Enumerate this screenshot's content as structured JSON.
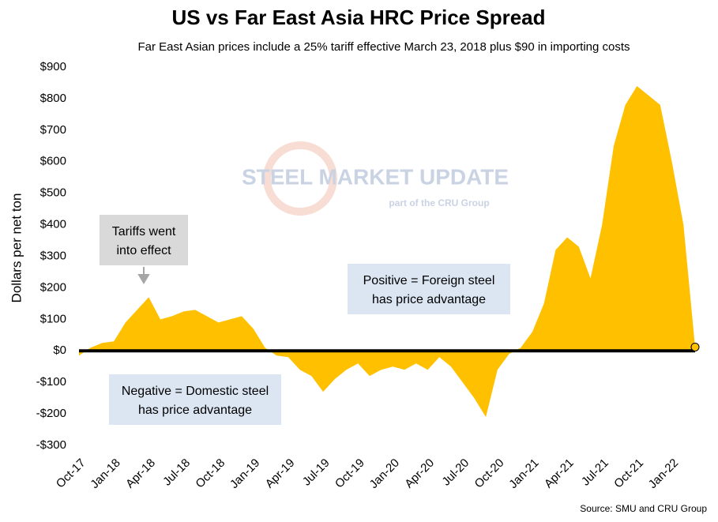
{
  "chart_data": {
    "type": "area",
    "title": "US vs Far East Asia HRC Price Spread",
    "subtitle": "Far East Asian prices include a 25% tariff effective March 23, 2018 plus $90 in importing costs",
    "y_label": "Dollars per net ton",
    "source": "Source: SMU and CRU Group",
    "watermark": {
      "title": "STEEL MARKET UPDATE",
      "subtitle": "part of the CRU Group"
    },
    "color": "#ffc000",
    "categories": [
      "Oct-17",
      null,
      null,
      "Jan-18",
      null,
      null,
      "Apr-18",
      null,
      null,
      "Jul-18",
      null,
      null,
      "Oct-18",
      null,
      null,
      "Jan-19",
      null,
      null,
      "Apr-19",
      null,
      null,
      "Jul-19",
      null,
      null,
      "Oct-19",
      null,
      null,
      "Jan-20",
      null,
      null,
      "Apr-20",
      null,
      null,
      "Jul-20",
      null,
      null,
      "Oct-20",
      null,
      null,
      "Jan-21",
      null,
      null,
      "Apr-21",
      null,
      null,
      "Jul-21",
      null,
      null,
      "Oct-21",
      null,
      null,
      "Jan-22",
      null,
      null
    ],
    "values": [
      -15,
      10,
      25,
      30,
      90,
      130,
      170,
      100,
      110,
      125,
      130,
      110,
      90,
      100,
      110,
      70,
      10,
      -15,
      -20,
      -60,
      -80,
      -130,
      -90,
      -60,
      -40,
      -80,
      -60,
      -50,
      -60,
      -40,
      -60,
      -20,
      -50,
      -100,
      -150,
      -210,
      -60,
      -10,
      10,
      60,
      150,
      320,
      360,
      330,
      230,
      400,
      650,
      780,
      840,
      810,
      780,
      600,
      400,
      12
    ],
    "ylim": [
      -300,
      900
    ],
    "yticks": [
      {
        "value": -300,
        "label": "-$300"
      },
      {
        "value": -200,
        "label": "-$200"
      },
      {
        "value": -100,
        "label": "-$100"
      },
      {
        "value": 0,
        "label": "$0"
      },
      {
        "value": 100,
        "label": "$100"
      },
      {
        "value": 200,
        "label": "$200"
      },
      {
        "value": 300,
        "label": "$300"
      },
      {
        "value": 400,
        "label": "$400"
      },
      {
        "value": 500,
        "label": "$500"
      },
      {
        "value": 600,
        "label": "$600"
      },
      {
        "value": 700,
        "label": "$700"
      },
      {
        "value": 800,
        "label": "$800"
      },
      {
        "value": 900,
        "label": "$900"
      }
    ],
    "grid": false,
    "annotations": [
      {
        "lines": [
          "Tariffs went",
          "into effect"
        ]
      },
      {
        "lines": [
          "Positive = Foreign steel",
          "has price advantage"
        ]
      },
      {
        "lines": [
          "Negative = Domestic steel",
          "has price advantage"
        ]
      }
    ]
  }
}
